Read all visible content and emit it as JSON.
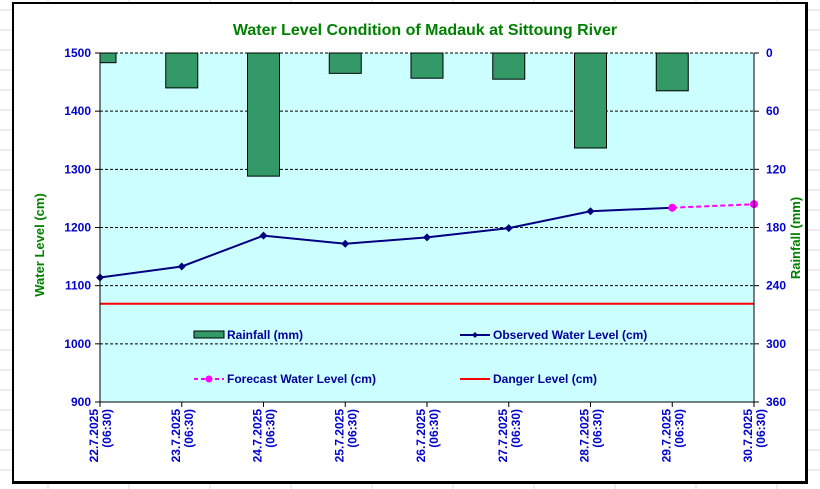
{
  "chart_data": {
    "type": "bar+line",
    "title": "Water Level Condition of Madauk at Sittoung River",
    "categories": [
      [
        "22.7.2025",
        "(06:30)"
      ],
      [
        "23.7.2025",
        "(06:30)"
      ],
      [
        "24.7.2025",
        "(06:30)"
      ],
      [
        "25.7.2025",
        "(06:30)"
      ],
      [
        "26.7.2025",
        "(06:30)"
      ],
      [
        "27.7.2025",
        "(06:30)"
      ],
      [
        "28.7.2025",
        "(06:30)"
      ],
      [
        "29.7.2025",
        "(06:30)"
      ],
      [
        "30.7.2025",
        "(06:30)"
      ]
    ],
    "y_left": {
      "label": "Water Level (cm)",
      "range": [
        900,
        1500
      ],
      "ticks": [
        900,
        1000,
        1100,
        1200,
        1300,
        1400,
        1500
      ]
    },
    "y_right": {
      "label": "Rainfall (mm)",
      "range": [
        0,
        360
      ],
      "inverted": true,
      "ticks": [
        0,
        60,
        120,
        180,
        240,
        300,
        360
      ]
    },
    "grid": "horizontal-dashed",
    "series": [
      {
        "name": "Rainfall (mm)",
        "type": "bar",
        "axis": "right",
        "color": "#339966",
        "values": [
          10,
          36,
          127,
          21,
          26,
          27,
          98,
          39,
          null
        ]
      },
      {
        "name": "Observed Water Level (cm)",
        "type": "line",
        "axis": "left",
        "color": "#000080",
        "marker": "diamond",
        "values": [
          1114,
          1133,
          1186,
          1172,
          1183,
          1199,
          1228,
          1234,
          null
        ]
      },
      {
        "name": "Forecast Water Level (cm)",
        "type": "line",
        "axis": "left",
        "color": "#ff00ff",
        "marker": "circle",
        "dashed": true,
        "values": [
          null,
          null,
          null,
          null,
          null,
          null,
          null,
          1234,
          1240
        ]
      },
      {
        "name": "Danger Level (cm)",
        "type": "line",
        "axis": "left",
        "color": "#ff0000",
        "constant": 1069
      }
    ],
    "legend": [
      {
        "label": "Rainfall (mm)",
        "kind": "bar",
        "color": "#339966"
      },
      {
        "label": "Observed Water Level (cm)",
        "kind": "line-diamond",
        "color": "#000080"
      },
      {
        "label": "Forecast Water Level (cm)",
        "kind": "dashed-circle",
        "color": "#ff00ff"
      },
      {
        "label": "Danger Level (cm)",
        "kind": "line",
        "color": "#ff0000"
      }
    ],
    "legend_position": "inside-lower-center",
    "plot_background": "#ccffff"
  }
}
